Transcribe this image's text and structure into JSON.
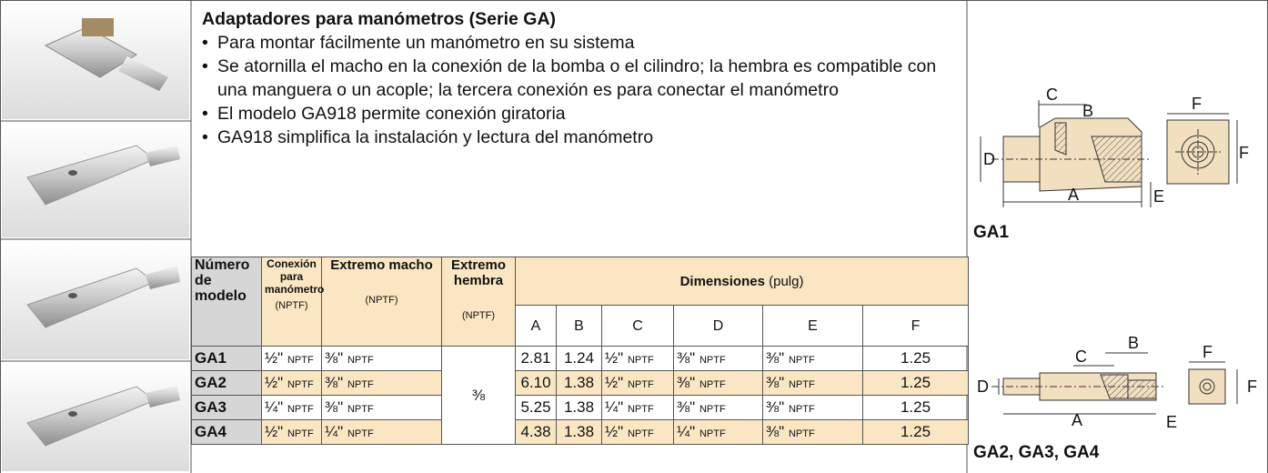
{
  "header": {
    "title": "Adaptadores para manómetros (Serie GA)",
    "bullets": [
      "Para montar fácilmente un manómetro en su sistema",
      "Se atornilla el macho en la conexión de la bomba o el cilindro; la hembra es compatible con una manguera o un acople; la tercera conexión es para conectar el manómetro",
      "El modelo GA918 permite conexión giratoria",
      "GA918 simplifica la instalación y lectura del manómetro"
    ]
  },
  "table": {
    "headers": {
      "model": "Número de modelo",
      "gauge": {
        "name": "Conexión para manómetro",
        "unit": "(NPTF)"
      },
      "male": {
        "name": "Extremo macho",
        "unit": "(NPTF)"
      },
      "female": {
        "name": "Extremo hembra",
        "unit": "(NPTF)"
      },
      "dimensions": {
        "name": "Dimensiones",
        "unit": "(pulg)",
        "columns": [
          "A",
          "B",
          "C",
          "D",
          "E",
          "F"
        ]
      }
    },
    "female_shared": "⅜",
    "rows": [
      {
        "model": "GA1",
        "gauge": {
          "size": "½\"",
          "thread": "NPTF"
        },
        "male": {
          "size": "⅜\"",
          "thread": "NPTF"
        },
        "A": "2.81",
        "B": "1.24",
        "C": {
          "size": "½\"",
          "thread": "NPTF"
        },
        "D": {
          "size": "⅜\"",
          "thread": "NPTF"
        },
        "E": {
          "size": "⅜\"",
          "thread": "NPTF"
        },
        "F": "1.25"
      },
      {
        "model": "GA2",
        "gauge": {
          "size": "½\"",
          "thread": "NPTF"
        },
        "male": {
          "size": "⅜\"",
          "thread": "NPTF"
        },
        "A": "6.10",
        "B": "1.38",
        "C": {
          "size": "½\"",
          "thread": "NPTF"
        },
        "D": {
          "size": "⅜\"",
          "thread": "NPTF"
        },
        "E": {
          "size": "⅜\"",
          "thread": "NPTF"
        },
        "F": "1.25"
      },
      {
        "model": "GA3",
        "gauge": {
          "size": "¼\"",
          "thread": "NPTF"
        },
        "male": {
          "size": "⅜\"",
          "thread": "NPTF"
        },
        "A": "5.25",
        "B": "1.38",
        "C": {
          "size": "¼\"",
          "thread": "NPTF"
        },
        "D": {
          "size": "⅜\"",
          "thread": "NPTF"
        },
        "E": {
          "size": "⅜\"",
          "thread": "NPTF"
        },
        "F": "1.25"
      },
      {
        "model": "GA4",
        "gauge": {
          "size": "½\"",
          "thread": "NPTF"
        },
        "male": {
          "size": "¼\"",
          "thread": "NPTF"
        },
        "A": "4.38",
        "B": "1.38",
        "C": {
          "size": "½\"",
          "thread": "NPTF"
        },
        "D": {
          "size": "¼\"",
          "thread": "NPTF"
        },
        "E": {
          "size": "⅜\"",
          "thread": "NPTF"
        },
        "F": "1.25"
      }
    ]
  },
  "drawings": [
    {
      "caption": "GA1",
      "labels": {
        "C": "C",
        "B": "B",
        "F_top": "F",
        "D": "D",
        "F_side": "F",
        "A": "A",
        "E": "E"
      }
    },
    {
      "caption": "GA2, GA3, GA4",
      "labels": {
        "C": "C",
        "B": "B",
        "F_top": "F",
        "D": "D",
        "F_side": "F",
        "A": "A",
        "E": "E"
      }
    }
  ]
}
